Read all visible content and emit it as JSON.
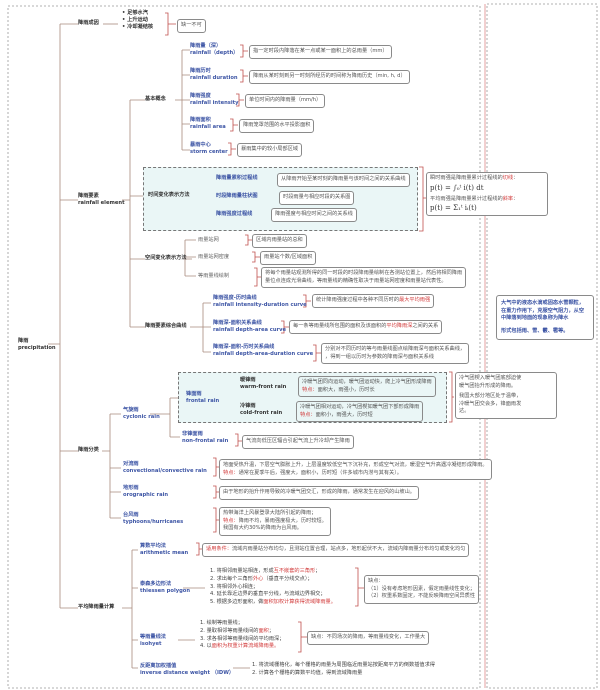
{
  "root": {
    "zh": "降雨",
    "en": "precipitation"
  },
  "definition": {
    "text": "大气中的液态水滴或固态水雪颗粒，在重力作用下，克服空气阻力，从空中降落到地面的现象称为降水",
    "forms": "形式包括雨、雪、霰、雹等。"
  },
  "cause": {
    "title": "降雨成因",
    "items": [
      "足够水汽",
      "上升运动",
      "冷却凝结核"
    ],
    "note": "缺一不可"
  },
  "element": {
    "title": "降雨要素",
    "en": "rainfall element",
    "basic": {
      "title": "基本概念",
      "items": [
        {
          "zh": "降雨量（深）",
          "en": "rainfall（depth）",
          "desc": "指一定时段内降落在某一点或某一面积上的总雨量（mm）"
        },
        {
          "zh": "降雨历时",
          "en": "rainfall duration",
          "desc": "降雨从某时刻到另一时刻所经历的时间称为降雨历史（min, h, d）"
        },
        {
          "zh": "降雨强度",
          "en": "rainfall intensity",
          "desc": "单位时间内的降雨量（mm/h）"
        },
        {
          "zh": "降雨面积",
          "en": "rainfall area",
          "desc": "降雨笼罩范围的水平投影面积"
        },
        {
          "zh": "暴雨中心",
          "en": "storm center",
          "desc": "暴雨集中的较小局部区域"
        }
      ]
    },
    "time": {
      "title": "时间变化表示方法",
      "items": [
        {
          "zh": "降雨量累积过程线",
          "desc": "从降雨开始至某时刻的降雨量与该时间之间的关系曲线"
        },
        {
          "zh": "时段降雨量柱状图",
          "desc": "时段雨量与相应时段的关系图"
        },
        {
          "zh": "降雨强度过程线",
          "desc": "降雨强度与相应时间之间的关系线"
        }
      ],
      "note1_pre": "瞬时雨强是降雨量累计过程线的",
      "note1_red": "切线",
      "note1_post": "：",
      "formula1": "p(t) = ∫₀ᵗ i(t) dt",
      "note2_pre": "平均雨强是降雨量累计过程线的",
      "note2_red": "斜率",
      "note2_post": "：",
      "formula2": "p(t) = Σ₁ᵗ iᵢ(t)"
    },
    "space": {
      "title": "空间变化表示方法",
      "items": [
        {
          "zh": "雨量站网",
          "desc": "区域内雨量站的总和"
        },
        {
          "zh": "雨量站网密度",
          "desc": "雨量站个数/区域面积"
        },
        {
          "zh": "等雨量线绘制",
          "desc1": "将每个雨量站观测所得的同一时段的时段降雨量绘制在各测站位置上，然后将相同降雨",
          "desc2": "量位点连成光滑曲线，等雨量线的精确性取决于雨量站网密度和雨量站代表性。"
        }
      ]
    },
    "curves": {
      "title": "降雨要素综合曲线",
      "items": [
        {
          "zh": "降雨强度-历时曲线",
          "en": "rainfall intensity-duration curve",
          "pre": "统计降雨强度过程中各种不同历时的",
          "red": "最大平均雨强",
          "post": ""
        },
        {
          "zh": "降雨深-面积关系曲线",
          "en": "rainfall depth-area curve",
          "pre": "每一条等雨量线所包围的面积及该面积的",
          "red": "平均降雨深",
          "post": "之间的关系"
        },
        {
          "zh": "降雨深-面积-历时关系曲线",
          "en": "rainfall depth-area-duration curve",
          "l1": "分别对不同历时的等与雨量线图点绘降雨深与面积关系曲线，",
          "l2": "，得到一组以历时为参数的降雨深与面积关系线"
        }
      ]
    }
  },
  "classify": {
    "title": "降雨分类",
    "cyclonic": {
      "zh": "气旋雨",
      "en": "cyclonic rain",
      "frontal": {
        "zh": "锋面雨",
        "en": "frontal rain",
        "warm": {
          "zh": "暖锋雨",
          "en": "warm-front rain",
          "l1": "冷暖气团同向运动，暖气团运动快，爬上冷气团形成降雨",
          "label": "特点：",
          "l2": "面积大，雨强小，历时长"
        },
        "cold": {
          "zh": "冷锋雨",
          "en": "cold-front rain",
          "l1": "冷暖气团相对运动，冷气团楔如暖气团下部形成降雨",
          "label": "特点：",
          "l2": "面积小，雨强大，历时短"
        },
        "note1": "冷气团楔入暖气团底部迫使",
        "note2": "暖气团抬升形成的降雨。",
        "note3": "我国大部分地区处于温带，",
        "note4": "冷暖气团交会多，锋面雨发",
        "note5": "达。"
      },
      "nonfrontal": {
        "zh": "非锋面雨",
        "en": "non-frontal rain",
        "desc": "气流向低压区辐合引起气流上升冷却产生降雨"
      }
    },
    "convective": {
      "zh": "对流雨",
      "en": "convectional/convective rain",
      "l1": "地面受热升温，下层空气膨胀上升，上层温度较低空气下沉补充，形成空气对流，暖湿空气升高遇冷凝结形成降雨。",
      "label": "特点：",
      "l2": "通常在夏季午后，强度大，面积小，历时短（许多城市内涝与其有关）。"
    },
    "orographic": {
      "zh": "地形雨",
      "en": "orographic rain",
      "desc": "由于地形的抬升作用导致的冷暖气团交汇，形成的降雨，通常发生在迎风的山坡山。"
    },
    "typhoon": {
      "zh": "台风雨",
      "en": "typhoons/hurricanes",
      "l1": "热带海洋上风暴登录大陆所引起的降雨；",
      "label": "特点：",
      "l2": "降雨不均，暴雨强度极大，历时较短。",
      "l3": "我国有大约30%的降雨为台风雨。"
    }
  },
  "average": {
    "title": "平均降雨量计算",
    "arith": {
      "zh": "算数平均法",
      "en": "arithmetic mean",
      "label": "适用条件：",
      "desc": "流域内雨量站分布均匀，且测站位置合理，站点多，地形起伏不大，流域内降雨量分布均匀或变化均匀"
    },
    "thiessen": {
      "zh": "泰森多边形法",
      "en": "thiessen polygon",
      "steps": [
        {
          "pre": "1. 将相邻雨量站相连，形成",
          "red": "互不嵌套的三角形",
          "post": "；"
        },
        {
          "pre": "2. 求出每个三角形",
          "red": "外心",
          "post": "（垂直平分线交点）；"
        },
        {
          "pre": "3. 将相邻外心相连；",
          "red": "",
          "post": ""
        },
        {
          "pre": "4. 延长靠近边界的垂直平分线，与流域边界相交；",
          "red": "",
          "post": ""
        },
        {
          "pre": "5. 根据多边形面积，做",
          "red": "面积加权计算获得流域降雨量。",
          "post": ""
        }
      ],
      "cons_title": "缺点：",
      "cons": [
        "（1）没有考虑地形因素，假定雨量线性变化；",
        "（2）权重系数固定，不能反映降雨空间异质性"
      ]
    },
    "isohyet": {
      "zh": "等雨量线法",
      "en": "isohyet",
      "steps": [
        {
          "pre": "1. 绘制等雨量线；",
          "red": "",
          "post": ""
        },
        {
          "pre": "2. 量取相邻等雨量线间的",
          "red": "面积",
          "post": "；"
        },
        {
          "pre": "3. 求各相邻等雨量线间的平均雨深；",
          "red": "",
          "post": ""
        },
        {
          "pre": "4. 以",
          "red": "面积为权重计算流域降雨量。",
          "post": ""
        }
      ],
      "cons": "缺点：不同场次的降雨，等雨量线变化，工作量大"
    },
    "idw": {
      "zh": "反距离加权插值",
      "en": "inverse distance weight （IDW）",
      "steps": [
        "1. 将流域栅格化，每个栅格的雨量为周围临近雨量站按距离平方的倒数插值求得",
        "2. 计算各个栅格的算数平均值，得到流域降雨量"
      ]
    }
  },
  "colors": {
    "title": "#3d55a5",
    "highlight": "#d23b3b",
    "brace": "#c0504d",
    "line": "#a98b7d",
    "dash_fill": "#eaf6f6"
  }
}
